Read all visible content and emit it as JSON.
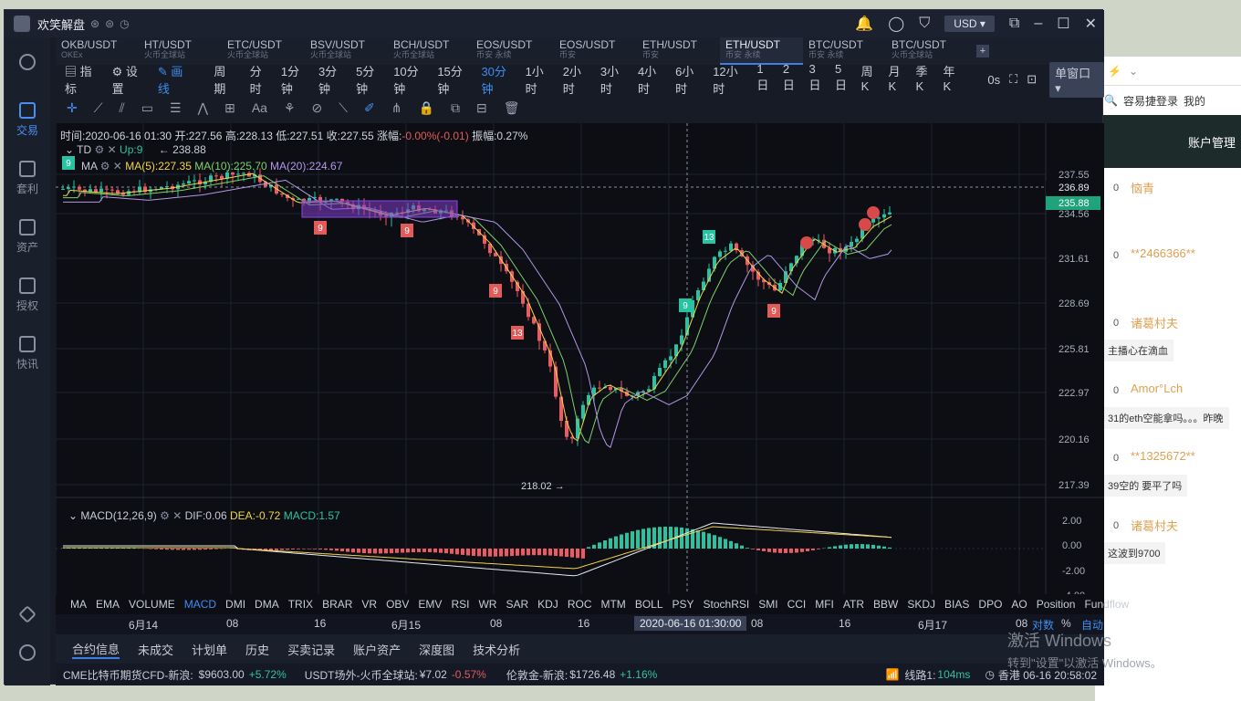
{
  "app": {
    "title": "欢笑解盘",
    "currency": "USD"
  },
  "symbols": [
    {
      "pair": "OKB/USDT",
      "ex": "OKEx"
    },
    {
      "pair": "HT/USDT",
      "ex": "火币全球站"
    },
    {
      "pair": "ETC/USDT",
      "ex": "火币全球站"
    },
    {
      "pair": "BSV/USDT",
      "ex": "火币全球站"
    },
    {
      "pair": "BCH/USDT",
      "ex": "火币全球站"
    },
    {
      "pair": "EOS/USDT",
      "ex": "币安 永续"
    },
    {
      "pair": "EOS/USDT",
      "ex": "币安"
    },
    {
      "pair": "ETH/USDT",
      "ex": "币安"
    },
    {
      "pair": "ETH/USDT",
      "ex": "币安 永续"
    },
    {
      "pair": "BTC/USDT",
      "ex": "币安 永续"
    },
    {
      "pair": "BTC/USDT",
      "ex": "火币全球站"
    }
  ],
  "nav": [
    {
      "label": "交易"
    },
    {
      "label": "套利"
    },
    {
      "label": "资产"
    },
    {
      "label": "授权"
    },
    {
      "label": "快讯"
    }
  ],
  "toolbar": {
    "indicator": "指标",
    "settings": "设置",
    "draw": "画线",
    "period": "周期",
    "timeframes": [
      "分时",
      "1分钟",
      "3分钟",
      "5分钟",
      "10分钟",
      "15分钟",
      "30分钟",
      "1小时",
      "2小时",
      "3小时",
      "4小时",
      "6小时",
      "12小时",
      "1日",
      "2日",
      "3日",
      "5日",
      "周K",
      "月K",
      "季K",
      "年K"
    ],
    "active_tf": "30分钟",
    "os": "0s",
    "window": "单窗口"
  },
  "info": {
    "time": "时间:2020-06-16 01:30",
    "open": "开:227.56",
    "high": "高:228.13",
    "low": "低:227.51",
    "close": "收:227.55",
    "change_label": "涨幅:",
    "change": "-0.00%(-0.01)",
    "amp": "振幅:0.27%"
  },
  "legend": {
    "td": "TD",
    "td_up": "Up:9",
    "td_val": "238.88",
    "ma": "MA",
    "ma5": "MA(5):227.35",
    "ma10": "MA(10):225.70",
    "ma20": "MA(20):224.67"
  },
  "macd": {
    "label": "MACD(12,26,9)",
    "dif": "DIF:0.06",
    "dea": "DEA:-0.72",
    "macd": "MACD:1.57"
  },
  "price_axis": [
    "237.55",
    "234.56",
    "231.61",
    "228.69",
    "225.81",
    "222.97",
    "220.16",
    "217.39"
  ],
  "price_tags": {
    "current": "236.89",
    "last": "235.88"
  },
  "macd_axis": [
    "2.00",
    "0.00",
    "-2.00",
    "-4.00"
  ],
  "low_label": "218.02 →",
  "high_label": "← 238.88",
  "td_marks": [
    "9",
    "9",
    "9",
    "13",
    "13",
    "9",
    "9"
  ],
  "indicators": [
    "MA",
    "EMA",
    "VOLUME",
    "MACD",
    "DMI",
    "DMA",
    "TRIX",
    "BRAR",
    "VR",
    "OBV",
    "EMV",
    "RSI",
    "WR",
    "SAR",
    "KDJ",
    "ROC",
    "MTM",
    "BOLL",
    "PSY",
    "StochRSI",
    "SMI",
    "CCI",
    "MFI",
    "ATR",
    "BBW",
    "SKDJ",
    "BIAS",
    "DPO",
    "AO",
    "Position",
    "Fundflow"
  ],
  "active_indicator": "MACD",
  "time_axis": {
    "labels": [
      "6月14",
      "08",
      "16",
      "6月15",
      "08",
      "16",
      "08",
      "16",
      "6月17",
      "08"
    ],
    "cursor": "2020-06-16 01:30:00",
    "log": "对数",
    "pct": "%",
    "auto": "自动"
  },
  "bottom_tabs": [
    "合约信息",
    "未成交",
    "计划单",
    "历史",
    "买卖记录",
    "账户资产",
    "深度图",
    "技术分析"
  ],
  "status": {
    "cme": "CME比特币期货CFD-新浪:",
    "cme_val": "$9603.00",
    "cme_chg": "+5.72%",
    "usdt": "USDT场外-火币全球站:",
    "usdt_val": "¥7.02",
    "usdt_chg": "-0.57%",
    "gold": "伦敦金-新浪:",
    "gold_val": "$1726.48",
    "gold_chg": "+1.16%",
    "line": "线路1:",
    "ping": "104ms",
    "time": "香港 06-16 20:58:02"
  },
  "sidepanel": {
    "bookmark": "容易捷登录",
    "mine": "我的",
    "account": "账户管理",
    "feed": [
      {
        "n": "0",
        "u": "恼青",
        "m": ""
      },
      {
        "n": "0",
        "u": "**2466366**",
        "m": ""
      },
      {
        "n": "0",
        "u": "诸葛村夫",
        "m": "主播心在滴血"
      },
      {
        "n": "0",
        "u": "Amor°Lch",
        "m": "31的eth空能拿吗。。。昨晚"
      },
      {
        "n": "0",
        "u": "**1325672**",
        "m": "39空的 要平了吗"
      },
      {
        "n": "0",
        "u": "诸葛村夫",
        "m": "这波到9700"
      }
    ]
  },
  "watermark": {
    "l1": "激活 Windows",
    "l2": "转到\"设置\"以激活 Windows。"
  }
}
